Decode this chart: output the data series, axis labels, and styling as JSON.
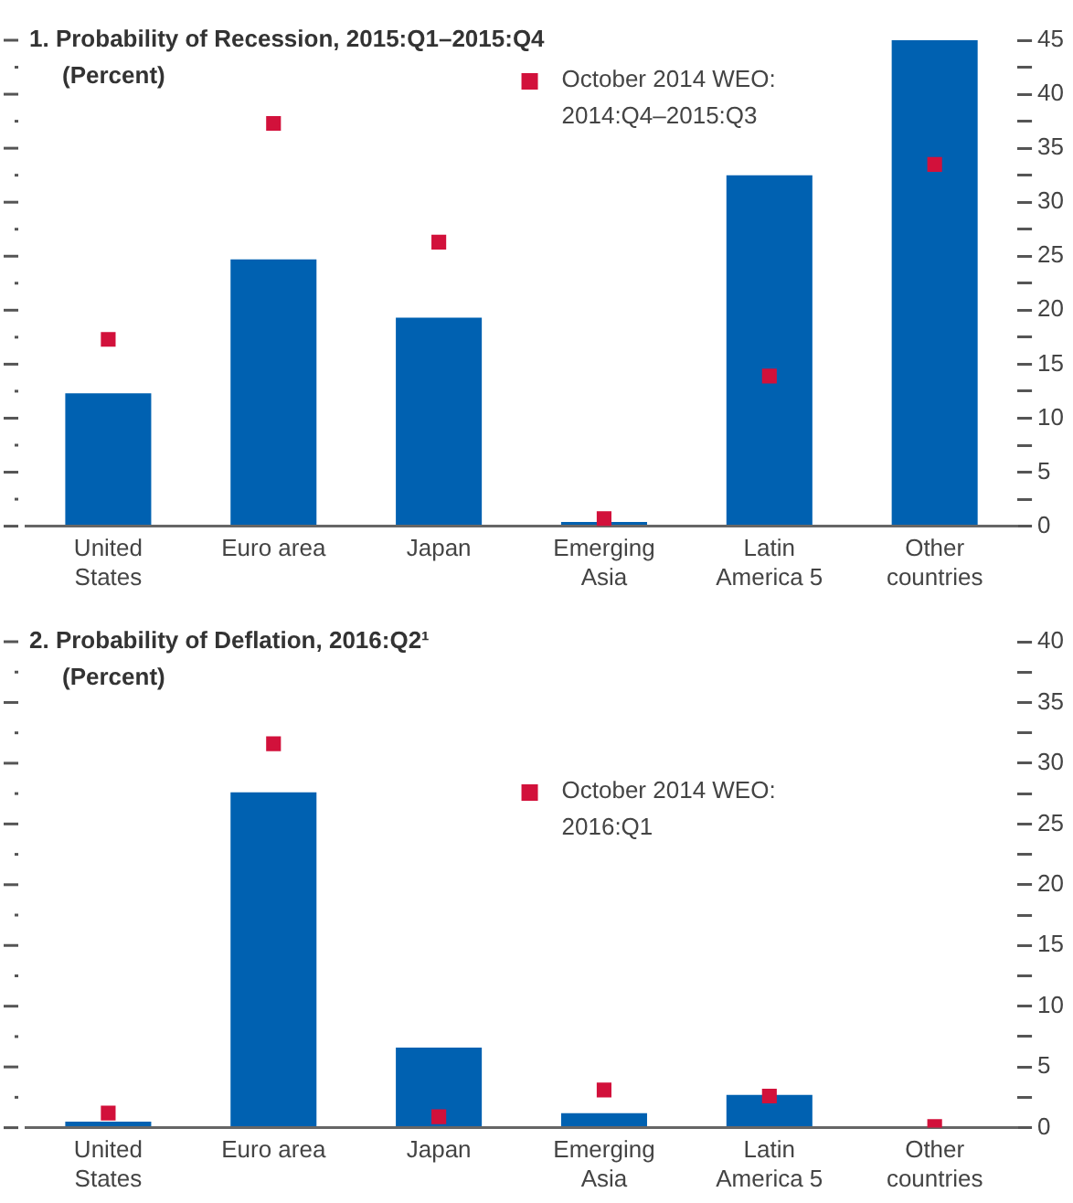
{
  "chart_data": [
    {
      "type": "bar",
      "title": "1. Probability of Recession, 2015:Q1–2015:Q4",
      "subtitle": "(Percent)",
      "categories": [
        "United\nStates",
        "Euro area",
        "Japan",
        "Emerging\nAsia",
        "Latin\nAmerica 5",
        "Other\ncountries"
      ],
      "series": [
        {
          "color": "#0061b1",
          "values": [
            12.3,
            24.7,
            19.3,
            0.4,
            32.5,
            45
          ]
        },
        {
          "type": "scatter",
          "name": "October 2014 WEO:\n2014:Q4–2015:Q3",
          "color": "#d2113b",
          "marker": "square",
          "values": [
            17.3,
            37.3,
            26.3,
            0.7,
            13.9,
            33.5
          ]
        }
      ],
      "ylim": [
        0,
        45
      ],
      "yticks": [
        0,
        {
          "value": 2.5,
          "label": null
        },
        5,
        {
          "value": 7.5,
          "label": null
        },
        10,
        {
          "value": 12.5,
          "label": null
        },
        15,
        {
          "value": 17.5,
          "label": null
        },
        20,
        {
          "value": 22.5,
          "label": null
        },
        25,
        {
          "value": 27.5,
          "label": null
        },
        30,
        {
          "value": 32.5,
          "label": null
        },
        35,
        {
          "value": 37.5,
          "label": null
        },
        40,
        {
          "value": 42.5,
          "label": null
        },
        45
      ],
      "legend": "top",
      "grid": false
    },
    {
      "type": "bar",
      "title": "2. Probability of Deflation, 2016:Q2¹",
      "subtitle": "(Percent)",
      "categories": [
        "United\nStates",
        "Euro area",
        "Japan",
        "Emerging\nAsia",
        "Latin\nAmerica 5",
        "Other\ncountries"
      ],
      "series": [
        {
          "color": "#0061b1",
          "values": [
            0.5,
            27.6,
            6.6,
            1.2,
            2.7,
            0
          ]
        },
        {
          "type": "scatter",
          "name": "October 2014 WEO:\n2016:Q1",
          "color": "#d2113b",
          "marker": "square",
          "values": [
            1.2,
            31.6,
            0.9,
            3.1,
            2.6,
            0.1
          ]
        }
      ],
      "ylim": [
        0,
        40
      ],
      "yticks": [
        0,
        {
          "value": 2.5,
          "label": null
        },
        5,
        {
          "value": 7.5,
          "label": null
        },
        10,
        {
          "value": 12.5,
          "label": null
        },
        15,
        {
          "value": 17.5,
          "label": null
        },
        20,
        {
          "value": 22.5,
          "label": null
        },
        25,
        {
          "value": 27.5,
          "label": null
        },
        30,
        {
          "value": 32.5,
          "label": null
        },
        35,
        {
          "value": 37.5,
          "label": null
        },
        40
      ],
      "legend": "top",
      "grid": false
    }
  ]
}
